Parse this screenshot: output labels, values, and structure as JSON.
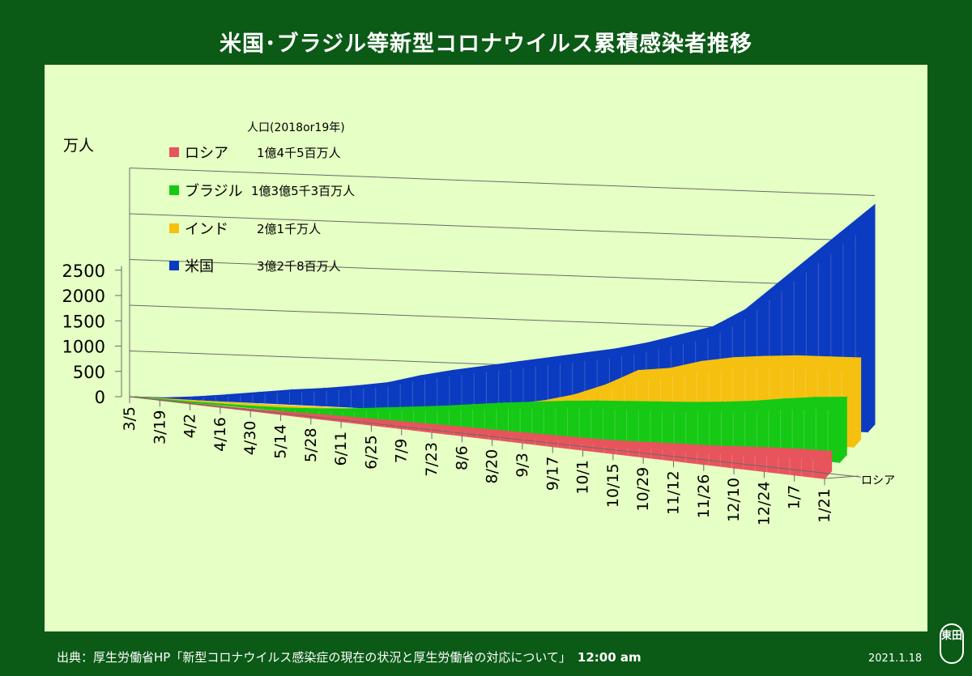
{
  "title": "米国･ブラジル等新型コロナウイルス累積感染者推移",
  "legend_header": "人口(2018or19年)",
  "footer": {
    "source": "出典：厚生労働省HP「新型コロナウイルス感染症の現在の状況と厚生労働省の対応について」",
    "time": "12:00 am",
    "date": "2021.1.18",
    "seal": "東田"
  },
  "colors": {
    "background": "#0b5a16",
    "plot_area": "#e5ffc4",
    "russia": "#e8545c",
    "brazil": "#15c915",
    "india": "#f5c010",
    "us": "#0b3bc0"
  },
  "chart_data": {
    "type": "area",
    "subtype": "3d-depth",
    "ylabel": "万人",
    "ylim": [
      0,
      2500
    ],
    "yticks": [
      "0",
      "500",
      "1000",
      "1500",
      "2000",
      "2500"
    ],
    "x": [
      "3/5",
      "3/19",
      "4/2",
      "4/16",
      "4/30",
      "5/14",
      "5/28",
      "6/11",
      "6/25",
      "7/9",
      "7/23",
      "8/6",
      "8/20",
      "9/3",
      "9/17",
      "10/1",
      "10/15",
      "10/29",
      "11/12",
      "11/26",
      "12/10",
      "12/24",
      "1/7",
      "1/21"
    ],
    "depth_label": "ロシア",
    "grid": true,
    "legend_position": "top-left",
    "series": [
      {
        "name": "ロシア",
        "population": "1億4千5百万人",
        "color": "#e8545c",
        "values": [
          0,
          0.1,
          0.2,
          1,
          10,
          24,
          38,
          50,
          60,
          70,
          80,
          87,
          95,
          100,
          110,
          120,
          135,
          165,
          195,
          220,
          260,
          300,
          330,
          350
        ]
      },
      {
        "name": "ブラジル",
        "population": "1億3億5千3百万人",
        "color": "#15c915",
        "values": [
          0,
          0,
          0,
          3,
          8,
          20,
          45,
          80,
          130,
          180,
          230,
          290,
          350,
          400,
          450,
          490,
          520,
          550,
          580,
          620,
          670,
          740,
          800,
          840
        ]
      },
      {
        "name": "インド",
        "population": "2億1千万人",
        "color": "#f5c010",
        "values": [
          0,
          0,
          0,
          0,
          1,
          3,
          8,
          15,
          25,
          40,
          70,
          120,
          180,
          250,
          350,
          500,
          700,
          750,
          860,
          930,
          970,
          1000,
          1010,
          1020
        ]
      },
      {
        "name": "米国",
        "population": "3億2千8百万人",
        "color": "#0b3bc0",
        "values": [
          0,
          1,
          25,
          60,
          100,
          140,
          170,
          210,
          260,
          350,
          420,
          480,
          540,
          600,
          660,
          720,
          800,
          900,
          1000,
          1200,
          1500,
          1800,
          2100,
          2400
        ]
      }
    ]
  }
}
